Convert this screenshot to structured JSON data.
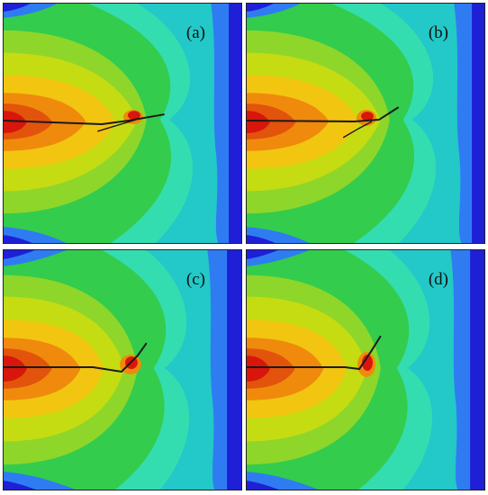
{
  "panels": [
    {
      "id": "a",
      "label": "(a)"
    },
    {
      "id": "b",
      "label": "(b)"
    },
    {
      "id": "c",
      "label": "(c)"
    },
    {
      "id": "d",
      "label": "(d)"
    }
  ],
  "colormap": {
    "dark_blue": "#1f1fd6",
    "blue": "#2f7cf2",
    "cyan": "#23c8c8",
    "aqua": "#34ddb0",
    "green": "#33cc4d",
    "light_green": "#8ed62a",
    "yellow_green": "#c5dc12",
    "yellow": "#f2c511",
    "orange": "#f08a0c",
    "red_orange": "#e2530c",
    "red": "#d8160c",
    "crack_line": "#1a1a1a"
  }
}
